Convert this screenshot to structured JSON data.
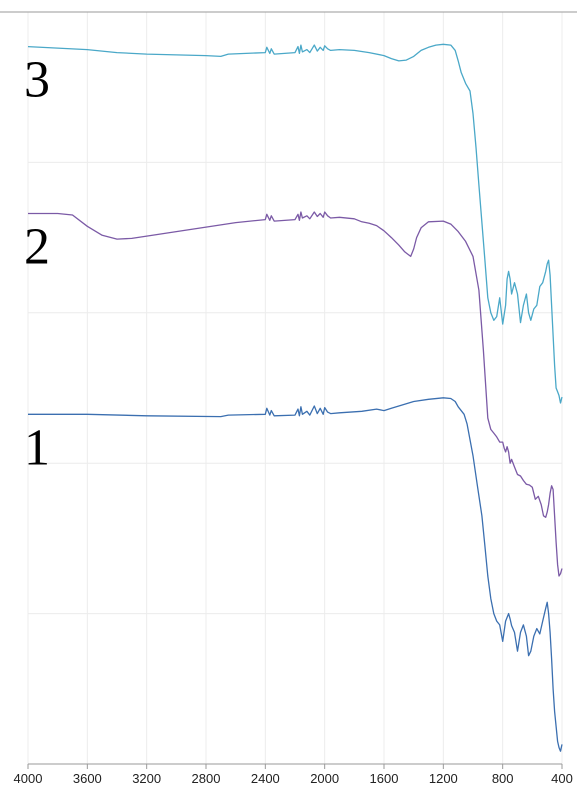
{
  "chart_data": {
    "type": "line",
    "title": "",
    "xlabel": "",
    "ylabel": "",
    "x_reversed": true,
    "xlim": [
      4000,
      400
    ],
    "x_ticks": [
      4000,
      3600,
      3200,
      2800,
      2400,
      2000,
      1600,
      1200,
      800,
      400
    ],
    "x_tick_labels": [
      "4000",
      "3600",
      "3200",
      "2800",
      "2400",
      "2000",
      "1600",
      "1200",
      "800",
      "400"
    ],
    "ylim": [
      0,
      100
    ],
    "y_ticks_shown": false,
    "grid": true,
    "legend": "none",
    "series": [
      {
        "name": "1",
        "color": "#3b6fb0",
        "x": [
          4000,
          3600,
          3200,
          2700,
          2650,
          2400,
          2390,
          2370,
          2360,
          2340,
          2200,
          2180,
          2170,
          2160,
          2150,
          2120,
          2100,
          2070,
          2050,
          2030,
          2010,
          2000,
          1980,
          1960,
          1900,
          1750,
          1650,
          1600,
          1550,
          1400,
          1300,
          1200,
          1150,
          1120,
          1100,
          1060,
          1040,
          1000,
          970,
          940,
          920,
          900,
          880,
          860,
          840,
          820,
          800,
          780,
          760,
          750,
          740,
          720,
          700,
          680,
          660,
          640,
          625,
          610,
          590,
          570,
          550,
          530,
          510,
          500,
          490,
          480,
          470,
          460,
          450,
          440,
          430,
          420,
          410,
          400
        ],
        "y": [
          46.5,
          46.5,
          46.3,
          46.2,
          46.4,
          46.5,
          47.3,
          46.4,
          47,
          46.3,
          46.4,
          47.2,
          46.3,
          47.5,
          46.5,
          46.9,
          46.4,
          47.6,
          46.6,
          47.3,
          46.5,
          47.4,
          46.8,
          46.6,
          46.7,
          46.9,
          47.2,
          47.0,
          47.3,
          48.2,
          48.5,
          48.7,
          48.6,
          48.2,
          47.5,
          46.5,
          45.2,
          41,
          37,
          33,
          29,
          25,
          22,
          20,
          19,
          18.5,
          16.3,
          19,
          20,
          19.3,
          18.4,
          17.5,
          15,
          17.5,
          18.5,
          17,
          14.4,
          15,
          17,
          18,
          17.3,
          19,
          20.7,
          21.5,
          20,
          17.5,
          14,
          10,
          7,
          5,
          3,
          2.2,
          1.7,
          2.6
        ]
      },
      {
        "name": "2",
        "color": "#7b5aa6",
        "x": [
          4000,
          3800,
          3700,
          3600,
          3500,
          3400,
          3300,
          3200,
          3000,
          2800,
          2600,
          2400,
          2390,
          2370,
          2360,
          2340,
          2200,
          2180,
          2170,
          2160,
          2150,
          2120,
          2100,
          2070,
          2050,
          2030,
          2010,
          2000,
          1980,
          1960,
          1900,
          1800,
          1750,
          1700,
          1650,
          1600,
          1550,
          1500,
          1460,
          1440,
          1420,
          1400,
          1380,
          1350,
          1300,
          1200,
          1150,
          1100,
          1050,
          1000,
          960,
          930,
          900,
          880,
          860,
          840,
          820,
          800,
          790,
          780,
          770,
          760,
          750,
          740,
          720,
          700,
          680,
          660,
          640,
          620,
          600,
          580,
          560,
          540,
          525,
          510,
          500,
          490,
          480,
          470,
          460,
          450,
          440,
          430,
          420,
          410,
          400
        ],
        "y": [
          73.2,
          73.2,
          73,
          71.5,
          70.3,
          69.8,
          69.9,
          70.2,
          70.8,
          71.4,
          72,
          72.4,
          73.1,
          72.3,
          72.9,
          72.2,
          72.4,
          73.1,
          72.3,
          73.4,
          72.6,
          72.9,
          72.5,
          73.4,
          72.8,
          73.2,
          72.7,
          73.4,
          72.9,
          72.6,
          72.7,
          72.5,
          72.1,
          71.9,
          71.6,
          70.9,
          70,
          69,
          68.1,
          67.8,
          67.5,
          68.5,
          70,
          71.3,
          72.1,
          72.2,
          71.8,
          70.8,
          69.5,
          67.5,
          63,
          55,
          46,
          44.5,
          44,
          43.5,
          42.8,
          42.8,
          42,
          41.5,
          42.2,
          41.5,
          40,
          40.5,
          39.5,
          38.5,
          38.3,
          37.7,
          37.2,
          37.1,
          36.8,
          35.2,
          35.6,
          34.5,
          33,
          32.8,
          33.5,
          34.5,
          36,
          37,
          36.5,
          33,
          29.5,
          26.5,
          25,
          25.3,
          26
        ]
      },
      {
        "name": "3",
        "color": "#4aa8c8",
        "x": [
          4000,
          3800,
          3600,
          3400,
          3200,
          3000,
          2800,
          2700,
          2650,
          2400,
          2390,
          2370,
          2360,
          2340,
          2200,
          2180,
          2170,
          2160,
          2150,
          2120,
          2100,
          2070,
          2050,
          2030,
          2010,
          2000,
          1980,
          1960,
          1900,
          1800,
          1700,
          1600,
          1550,
          1500,
          1450,
          1400,
          1350,
          1300,
          1250,
          1200,
          1150,
          1120,
          1100,
          1080,
          1050,
          1020,
          1000,
          980,
          960,
          940,
          920,
          900,
          880,
          860,
          840,
          820,
          800,
          780,
          770,
          760,
          750,
          740,
          720,
          700,
          680,
          660,
          640,
          625,
          610,
          590,
          570,
          550,
          530,
          510,
          500,
          490,
          480,
          470,
          460,
          450,
          440,
          430,
          420,
          410,
          400
        ],
        "y": [
          95.4,
          95.2,
          95,
          94.6,
          94.4,
          94.3,
          94.2,
          94.1,
          94.4,
          94.6,
          95.3,
          94.5,
          95.1,
          94.4,
          94.6,
          95.4,
          94.5,
          95.6,
          94.7,
          95,
          94.6,
          95.6,
          94.8,
          95.3,
          94.9,
          95.5,
          95.1,
          94.9,
          95,
          94.9,
          94.6,
          94.2,
          93.8,
          93.5,
          93.6,
          94.1,
          94.9,
          95.3,
          95.6,
          95.7,
          95.6,
          94.9,
          93.5,
          92,
          90.5,
          89.5,
          86.5,
          82,
          77,
          72,
          67,
          62,
          60,
          59,
          59.5,
          62,
          58.5,
          61,
          64.5,
          65.5,
          64.5,
          62.5,
          64,
          62.5,
          58.7,
          61,
          62.5,
          60,
          59,
          60.5,
          61,
          63.5,
          64,
          65.5,
          66.5,
          67,
          65,
          61,
          57,
          53,
          50,
          49.5,
          49,
          48,
          48.8
        ]
      }
    ]
  }
}
